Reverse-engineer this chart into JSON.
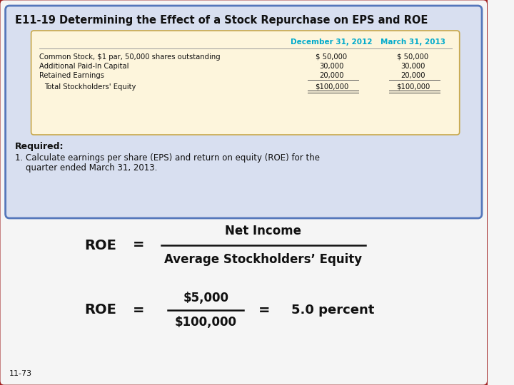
{
  "title": "E11-19 Determining the Effect of a Stock Repurchase on EPS and ROE",
  "bg_border_color": "#a02020",
  "outer_bg": "#f5f5f5",
  "blue_box_bg": "#d8dff0",
  "blue_box_border": "#5577bb",
  "table_box_bg": "#fdf5dc",
  "table_box_border": "#c8a84b",
  "header_color": "#00aacc",
  "table_headers": [
    "December 31, 2012",
    "March 31, 2013"
  ],
  "table_rows": [
    [
      "Common Stock, $1 par, 50,000 shares outstanding",
      "$ 50,000",
      "$ 50,000"
    ],
    [
      "Additional Paid-In Capital",
      "30,000",
      "30,000"
    ],
    [
      "Retained Earnings",
      "20,000",
      "20,000"
    ],
    [
      "Total Stockholders' Equity",
      "$100,000",
      "$100,000"
    ]
  ],
  "required_label": "Required:",
  "required_text1": "1. Calculate earnings per share (EPS) and return on equity (ROE) for the",
  "required_text2": "    quarter ended March 31, 2013.",
  "roe_label": "ROE",
  "equals": "=",
  "formula_numerator": "Net Income",
  "formula_denominator": "Average Stockholders’ Equity",
  "calc_numerator": "$5,000",
  "calc_denominator": "$100,000",
  "result_text": "5.0 percent",
  "footer": "11-73"
}
